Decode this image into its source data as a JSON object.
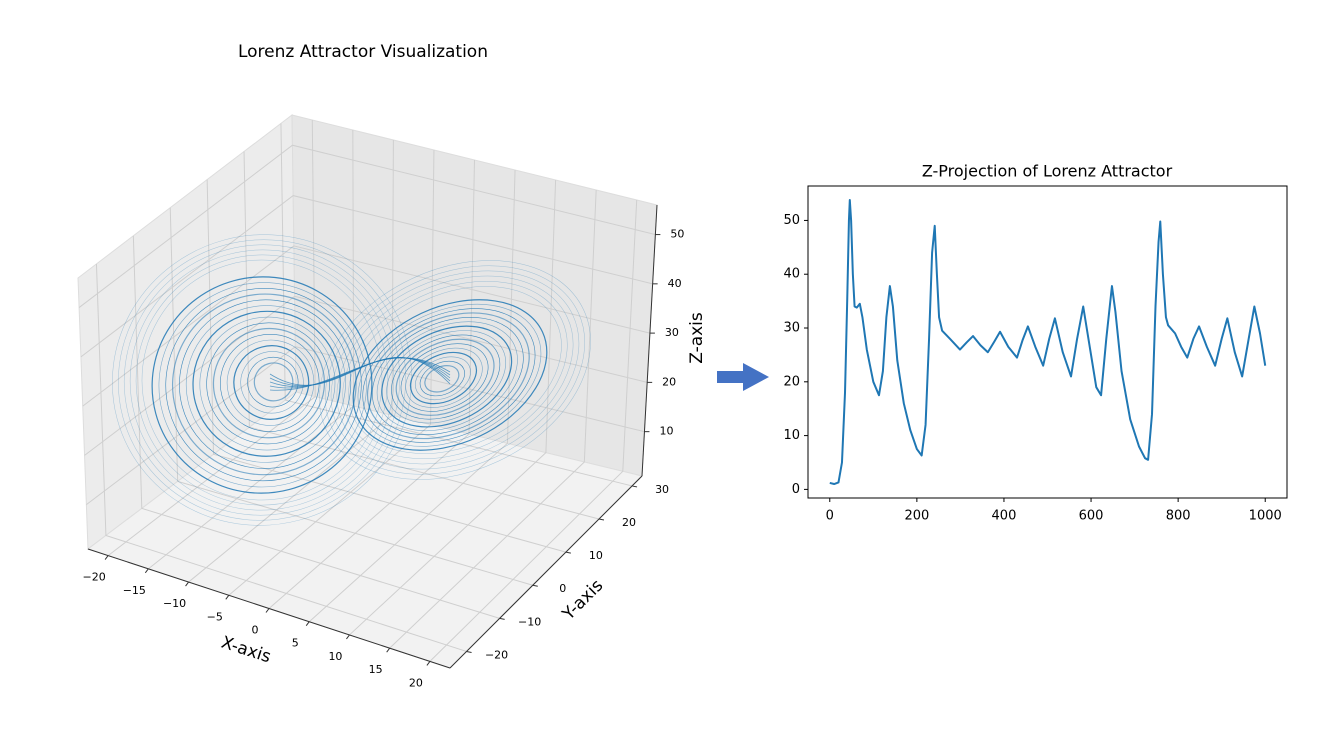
{
  "chart_data": [
    {
      "type": "line3d",
      "title": "Lorenz Attractor Visualization",
      "xlabel": "X-axis",
      "ylabel": "Y-axis",
      "zlabel": "Z-axis",
      "color": "#1f77b4",
      "xlim": [
        -22.5,
        22.5
      ],
      "ylim": [
        -25,
        33
      ],
      "zlim": [
        1,
        56
      ],
      "xticks": [
        {
          "value": -20,
          "label": "−20"
        },
        {
          "value": -15,
          "label": "−15"
        },
        {
          "value": -10,
          "label": "−10"
        },
        {
          "value": -5,
          "label": "−5"
        },
        0,
        5,
        10,
        15,
        20
      ],
      "yticks": [
        {
          "value": -20,
          "label": "−20"
        },
        {
          "value": -10,
          "label": "−10"
        },
        0,
        10,
        20,
        30
      ],
      "zticks": [
        10,
        20,
        30,
        40,
        50
      ],
      "grid": true
    },
    {
      "type": "line",
      "title": "Z-Projection of Lorenz Attractor",
      "color": "#1f77b4",
      "xlim": [
        -50,
        1050
      ],
      "ylim": [
        -1.6,
        56.4
      ],
      "xticks": [
        0,
        200,
        400,
        600,
        800,
        1000
      ],
      "yticks": [
        0,
        10,
        20,
        30,
        40,
        50
      ],
      "x": [
        0,
        10,
        20,
        28,
        35,
        40,
        44,
        46,
        49,
        53,
        57,
        62,
        69,
        75,
        85,
        100,
        113,
        122,
        130,
        138,
        145,
        155,
        170,
        185,
        200,
        211,
        220,
        228,
        235,
        241,
        246,
        251,
        258,
        276,
        299,
        314,
        329,
        346,
        363,
        378,
        391,
        410,
        430,
        443,
        455,
        472,
        490,
        504,
        517,
        535,
        554,
        568,
        582,
        600,
        612,
        623,
        635,
        648,
        656,
        670,
        690,
        710,
        724,
        731,
        740,
        748,
        755,
        759,
        765,
        772,
        777,
        793,
        807,
        821,
        835,
        848,
        866,
        885,
        900,
        913,
        930,
        947,
        962,
        975,
        988,
        1000
      ],
      "values": [
        1.2,
        1.0,
        1.3,
        5,
        18,
        35,
        50,
        53.8,
        50,
        40,
        34,
        33.8,
        34.5,
        32,
        26,
        20,
        17.5,
        22,
        32,
        37.8,
        34,
        24,
        16,
        11,
        7.5,
        6.3,
        12,
        28,
        44,
        49,
        40,
        32,
        29.5,
        28,
        26,
        27.3,
        28.5,
        26.8,
        25.5,
        27.5,
        29.3,
        26.5,
        24.5,
        27.8,
        30.3,
        26.5,
        23,
        28,
        31.8,
        25.5,
        21,
        28,
        34,
        25,
        19,
        17.5,
        28,
        37.8,
        33,
        22,
        13,
        8,
        5.8,
        5.5,
        14,
        34,
        46,
        49.8,
        40,
        32,
        30.5,
        29,
        26.5,
        24.5,
        28,
        30.3,
        26.5,
        23,
        28,
        31.8,
        25.5,
        21,
        28,
        34,
        29,
        23
      ]
    }
  ]
}
